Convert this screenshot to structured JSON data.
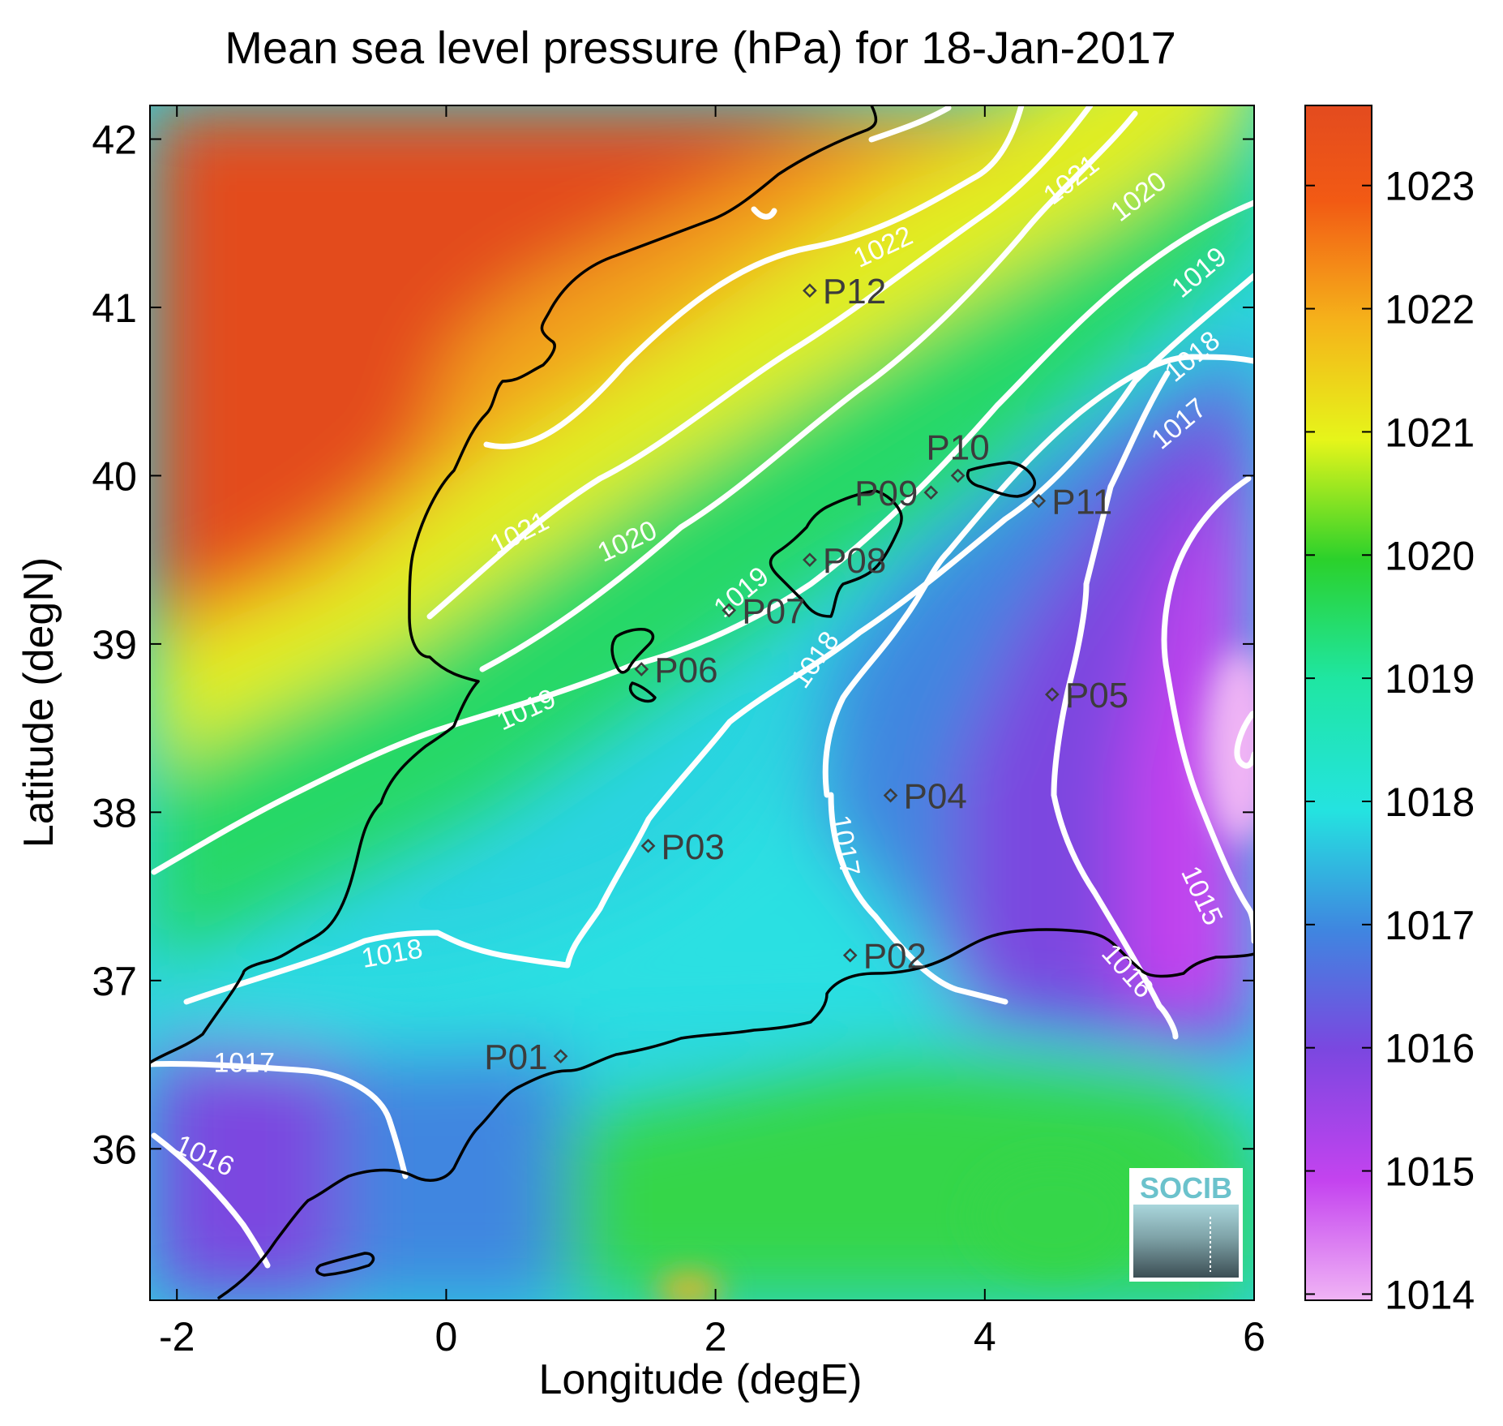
{
  "title": "Mean sea level pressure (hPa) for 18-Jan-2017",
  "x_axis": {
    "label": "Longitude (degE)",
    "range": [
      -2.2,
      6.0
    ],
    "ticks": [
      {
        "value": -2,
        "label": "-2"
      },
      {
        "value": 0,
        "label": "0"
      },
      {
        "value": 2,
        "label": "2"
      },
      {
        "value": 4,
        "label": "4"
      },
      {
        "value": 6,
        "label": "6"
      }
    ]
  },
  "y_axis": {
    "label": "Latitude (degN)",
    "range": [
      35.1,
      42.2
    ],
    "ticks": [
      {
        "value": 36,
        "label": "36"
      },
      {
        "value": 37,
        "label": "37"
      },
      {
        "value": 38,
        "label": "38"
      },
      {
        "value": 39,
        "label": "39"
      },
      {
        "value": 40,
        "label": "40"
      },
      {
        "value": 41,
        "label": "41"
      },
      {
        "value": 42,
        "label": "42"
      }
    ]
  },
  "colorbar": {
    "range": [
      1013.95,
      1023.65
    ],
    "ticks": [
      {
        "value": 1014,
        "label": "1014"
      },
      {
        "value": 1015,
        "label": "1015"
      },
      {
        "value": 1016,
        "label": "1016"
      },
      {
        "value": 1017,
        "label": "1017"
      },
      {
        "value": 1018,
        "label": "1018"
      },
      {
        "value": 1019,
        "label": "1019"
      },
      {
        "value": 1020,
        "label": "1020"
      },
      {
        "value": 1021,
        "label": "1021"
      },
      {
        "value": 1022,
        "label": "1022"
      },
      {
        "value": 1023,
        "label": "1023"
      }
    ],
    "colors": [
      "#f0b4f5",
      "#c443ef",
      "#7b47e0",
      "#3f86e0",
      "#24e3e0",
      "#1fe6a2",
      "#2bd12b",
      "#e6f51a",
      "#f5b21a",
      "#f25a14",
      "#e34b1f"
    ]
  },
  "stations": [
    {
      "id": "P01",
      "label": "P01",
      "lon": 0.85,
      "lat": 36.55,
      "label_side": "left"
    },
    {
      "id": "P02",
      "label": "P02",
      "lon": 3.0,
      "lat": 37.15,
      "label_side": "right"
    },
    {
      "id": "P03",
      "label": "P03",
      "lon": 1.5,
      "lat": 37.8,
      "label_side": "right"
    },
    {
      "id": "P04",
      "label": "P04",
      "lon": 3.3,
      "lat": 38.1,
      "label_side": "right"
    },
    {
      "id": "P05",
      "label": "P05",
      "lon": 4.5,
      "lat": 38.7,
      "label_side": "right"
    },
    {
      "id": "P06",
      "label": "P06",
      "lon": 1.45,
      "lat": 38.85,
      "label_side": "right"
    },
    {
      "id": "P07",
      "label": "P07",
      "lon": 2.1,
      "lat": 39.2,
      "label_side": "right"
    },
    {
      "id": "P08",
      "label": "P08",
      "lon": 2.7,
      "lat": 39.5,
      "label_side": "right"
    },
    {
      "id": "P09",
      "label": "P09",
      "lon": 3.6,
      "lat": 39.9,
      "label_side": "left"
    },
    {
      "id": "P10",
      "label": "P10",
      "lon": 3.8,
      "lat": 40.0,
      "label_side": "above"
    },
    {
      "id": "P11",
      "label": "P11",
      "lon": 4.4,
      "lat": 39.85,
      "label_side": "right"
    },
    {
      "id": "P12",
      "label": "P12",
      "lon": 2.7,
      "lat": 41.1,
      "label_side": "right"
    }
  ],
  "contour_labels": [
    {
      "text": "1022",
      "lon": 3.25,
      "lat": 41.35,
      "angle": -25
    },
    {
      "text": "1021",
      "lon": 4.65,
      "lat": 41.75,
      "angle": -38
    },
    {
      "text": "1020",
      "lon": 5.15,
      "lat": 41.65,
      "angle": -38
    },
    {
      "text": "1019",
      "lon": 5.6,
      "lat": 41.2,
      "angle": -40
    },
    {
      "text": "1018",
      "lon": 5.55,
      "lat": 40.7,
      "angle": -40
    },
    {
      "text": "1017",
      "lon": 5.45,
      "lat": 40.3,
      "angle": -40
    },
    {
      "text": "1021",
      "lon": 0.55,
      "lat": 39.65,
      "angle": -27
    },
    {
      "text": "1020",
      "lon": 1.35,
      "lat": 39.6,
      "angle": -25
    },
    {
      "text": "1019",
      "lon": 2.2,
      "lat": 39.3,
      "angle": -40
    },
    {
      "text": "1019",
      "lon": 0.6,
      "lat": 38.6,
      "angle": -25
    },
    {
      "text": "1018",
      "lon": 2.75,
      "lat": 38.9,
      "angle": -55
    },
    {
      "text": "1018",
      "lon": -0.4,
      "lat": 37.15,
      "angle": -10
    },
    {
      "text": "1017",
      "lon": -1.5,
      "lat": 36.5,
      "angle": 0
    },
    {
      "text": "1016",
      "lon": -1.8,
      "lat": 35.95,
      "angle": 25
    },
    {
      "text": "1017",
      "lon": 2.95,
      "lat": 37.8,
      "angle": 80
    },
    {
      "text": "1016",
      "lon": 5.05,
      "lat": 37.05,
      "angle": 48
    },
    {
      "text": "1015",
      "lon": 5.6,
      "lat": 37.5,
      "angle": 65
    }
  ],
  "logo_text": "SOCIB"
}
